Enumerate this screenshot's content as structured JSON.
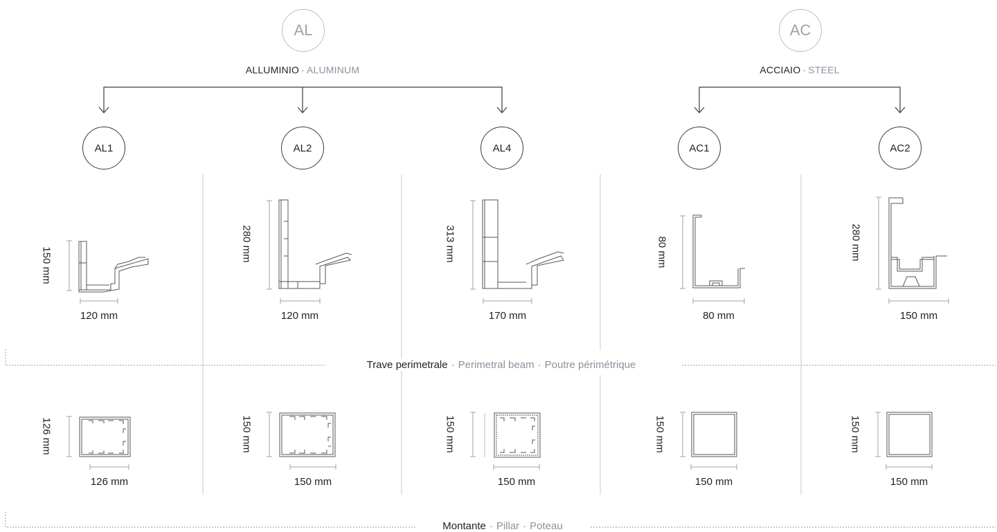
{
  "materials": [
    {
      "code": "AL",
      "label_it": "ALLUMINIO",
      "label_en": "ALUMINUM"
    },
    {
      "code": "AC",
      "label_it": "ACCIAIO",
      "label_en": "STEEL"
    }
  ],
  "separator": "·",
  "profiles": [
    {
      "code": "AL1",
      "material": "AL",
      "beam_height": "150 mm",
      "beam_width": "120 mm",
      "pillar_height": "126 mm",
      "pillar_width": "126 mm"
    },
    {
      "code": "AL2",
      "material": "AL",
      "beam_height": "280 mm",
      "beam_width": "120 mm",
      "pillar_height": "150 mm",
      "pillar_width": "150 mm"
    },
    {
      "code": "AL4",
      "material": "AL",
      "beam_height": "313 mm",
      "beam_width": "170 mm",
      "pillar_height": "150 mm",
      "pillar_width": "150 mm"
    },
    {
      "code": "AC1",
      "material": "AC",
      "beam_height": "80 mm",
      "beam_width": "80 mm",
      "pillar_height": "150 mm",
      "pillar_width": "150 mm"
    },
    {
      "code": "AC2",
      "material": "AC",
      "beam_height": "280 mm",
      "beam_width": "150 mm",
      "pillar_height": "150 mm",
      "pillar_width": "150 mm"
    }
  ],
  "sections": {
    "beam": {
      "it": "Trave perimetrale",
      "en": "Perimetral beam",
      "fr": "Poutre périmétrique"
    },
    "pillar": {
      "it": "Montante",
      "en": "Pillar",
      "fr": "Poteau"
    }
  },
  "colors": {
    "line": "#3a3a3a",
    "muted": "#8a939c",
    "dim_line": "#9aa3ad",
    "divider": "#c8c8c8"
  }
}
